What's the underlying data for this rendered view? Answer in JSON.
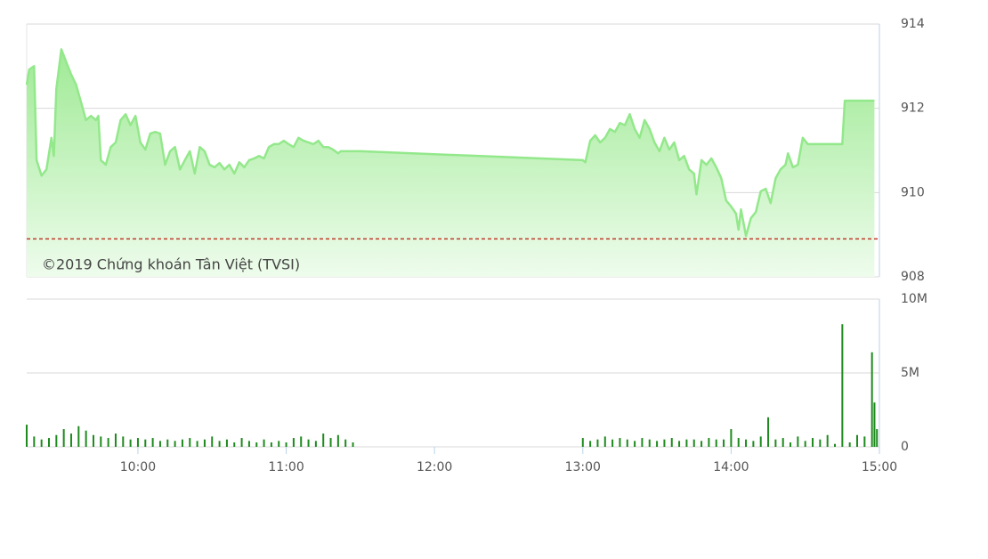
{
  "chart_data": [
    {
      "type": "line",
      "annotation": "©2019 Chứng khoán Tân Việt (TVSI)",
      "xlim": [
        "09:15",
        "15:00"
      ],
      "ylim": [
        908,
        914
      ],
      "yticks": [
        908,
        910,
        912,
        914
      ],
      "grid": true,
      "reference": 908.9,
      "x": [
        "09:15",
        "09:16",
        "09:18",
        "09:19",
        "09:21",
        "09:23",
        "09:25",
        "09:26",
        "09:27",
        "09:29",
        "09:31",
        "09:33",
        "09:35",
        "09:37",
        "09:39",
        "09:41",
        "09:43",
        "09:44",
        "09:45",
        "09:47",
        "09:49",
        "09:51",
        "09:53",
        "09:55",
        "09:57",
        "09:59",
        "10:01",
        "10:03",
        "10:05",
        "10:07",
        "10:09",
        "10:11",
        "10:13",
        "10:15",
        "10:17",
        "10:19",
        "10:21",
        "10:23",
        "10:25",
        "10:27",
        "10:29",
        "10:31",
        "10:33",
        "10:35",
        "10:37",
        "10:39",
        "10:41",
        "10:43",
        "10:45",
        "10:47",
        "10:49",
        "10:51",
        "10:53",
        "10:55",
        "10:57",
        "10:59",
        "11:01",
        "11:03",
        "11:05",
        "11:07",
        "11:09",
        "11:11",
        "11:13",
        "11:15",
        "11:17",
        "11:19",
        "11:21",
        "11:22",
        "11:30",
        "13:00",
        "13:01",
        "13:03",
        "13:05",
        "13:07",
        "13:09",
        "13:11",
        "13:13",
        "13:15",
        "13:17",
        "13:19",
        "13:21",
        "13:23",
        "13:25",
        "13:27",
        "13:29",
        "13:31",
        "13:33",
        "13:35",
        "13:37",
        "13:39",
        "13:41",
        "13:43",
        "13:45",
        "13:46",
        "13:48",
        "13:50",
        "13:52",
        "13:54",
        "13:56",
        "13:58",
        "14:00",
        "14:02",
        "14:03",
        "14:04",
        "14:06",
        "14:08",
        "14:10",
        "14:12",
        "14:14",
        "14:16",
        "14:18",
        "14:20",
        "14:22",
        "14:23",
        "14:25",
        "14:27",
        "14:29",
        "14:31",
        "14:45",
        "14:46",
        "14:58"
      ],
      "series": [
        {
          "color": "#93e88b",
          "values": [
            912.56,
            912.92,
            913.0,
            910.77,
            910.4,
            910.55,
            911.3,
            910.87,
            912.46,
            913.4,
            913.1,
            912.8,
            912.56,
            912.14,
            911.72,
            911.82,
            911.72,
            911.82,
            910.77,
            910.66,
            911.08,
            911.19,
            911.72,
            911.86,
            911.6,
            911.82,
            911.19,
            911.02,
            911.4,
            911.44,
            911.4,
            910.66,
            910.98,
            911.08,
            910.55,
            910.77,
            910.98,
            910.45,
            911.08,
            910.98,
            910.66,
            910.6,
            910.7,
            910.55,
            910.66,
            910.45,
            910.72,
            910.6,
            910.77,
            910.81,
            910.87,
            910.81,
            911.08,
            911.15,
            911.15,
            911.23,
            911.15,
            911.08,
            911.3,
            911.23,
            911.19,
            911.15,
            911.23,
            911.08,
            911.08,
            911.02,
            910.93,
            910.98,
            910.98,
            910.77,
            910.72,
            911.23,
            911.36,
            911.19,
            911.3,
            911.51,
            911.44,
            911.65,
            911.6,
            911.86,
            911.51,
            911.3,
            911.72,
            911.51,
            911.19,
            910.98,
            911.3,
            911.02,
            911.19,
            910.77,
            910.87,
            910.55,
            910.45,
            909.96,
            910.77,
            910.66,
            910.81,
            910.6,
            910.34,
            909.81,
            909.67,
            909.5,
            909.12,
            909.6,
            908.97,
            909.39,
            909.54,
            910.03,
            910.09,
            909.75,
            910.34,
            910.55,
            910.66,
            910.93,
            910.6,
            910.66,
            911.3,
            911.15,
            911.15,
            912.18,
            912.18
          ]
        }
      ]
    },
    {
      "type": "bar",
      "xlim": [
        "09:15",
        "15:00"
      ],
      "xticks": [
        "10:00",
        "11:00",
        "12:00",
        "13:00",
        "14:00",
        "15:00"
      ],
      "ylim": [
        0,
        10000000
      ],
      "yticks": [
        {
          "value": 0,
          "label": "0"
        },
        {
          "value": 5000000,
          "label": "5M"
        },
        {
          "value": 10000000,
          "label": "10M"
        }
      ],
      "grid": true,
      "x": [
        "09:15",
        "09:18",
        "09:21",
        "09:24",
        "09:27",
        "09:30",
        "09:33",
        "09:36",
        "09:39",
        "09:42",
        "09:45",
        "09:48",
        "09:51",
        "09:54",
        "09:57",
        "10:00",
        "10:03",
        "10:06",
        "10:09",
        "10:12",
        "10:15",
        "10:18",
        "10:21",
        "10:24",
        "10:27",
        "10:30",
        "10:33",
        "10:36",
        "10:39",
        "10:42",
        "10:45",
        "10:48",
        "10:51",
        "10:54",
        "10:57",
        "11:00",
        "11:03",
        "11:06",
        "11:09",
        "11:12",
        "11:15",
        "11:18",
        "11:21",
        "11:24",
        "11:27",
        "13:00",
        "13:03",
        "13:06",
        "13:09",
        "13:12",
        "13:15",
        "13:18",
        "13:21",
        "13:24",
        "13:27",
        "13:30",
        "13:33",
        "13:36",
        "13:39",
        "13:42",
        "13:45",
        "13:48",
        "13:51",
        "13:54",
        "13:57",
        "14:00",
        "14:03",
        "14:06",
        "14:09",
        "14:12",
        "14:15",
        "14:18",
        "14:21",
        "14:24",
        "14:27",
        "14:30",
        "14:33",
        "14:36",
        "14:39",
        "14:42",
        "14:45",
        "14:48",
        "14:51",
        "14:54",
        "14:57",
        "14:58",
        "14:59"
      ],
      "series": [
        {
          "color": "#1e8a1e",
          "values": [
            1500000,
            700000,
            500000,
            600000,
            800000,
            1200000,
            900000,
            1400000,
            1100000,
            800000,
            700000,
            600000,
            900000,
            700000,
            500000,
            600000,
            500000,
            600000,
            400000,
            500000,
            400000,
            500000,
            600000,
            400000,
            500000,
            700000,
            400000,
            500000,
            300000,
            600000,
            400000,
            300000,
            500000,
            300000,
            400000,
            300000,
            600000,
            700000,
            500000,
            400000,
            900000,
            600000,
            800000,
            500000,
            300000,
            600000,
            400000,
            500000,
            700000,
            500000,
            600000,
            500000,
            400000,
            600000,
            500000,
            400000,
            500000,
            600000,
            400000,
            500000,
            500000,
            400000,
            600000,
            500000,
            500000,
            1200000,
            600000,
            500000,
            400000,
            700000,
            2000000,
            500000,
            600000,
            300000,
            700000,
            400000,
            600000,
            500000,
            800000,
            200000,
            8300000,
            300000,
            800000,
            700000,
            6400000,
            3000000,
            1200000
          ]
        }
      ]
    }
  ]
}
